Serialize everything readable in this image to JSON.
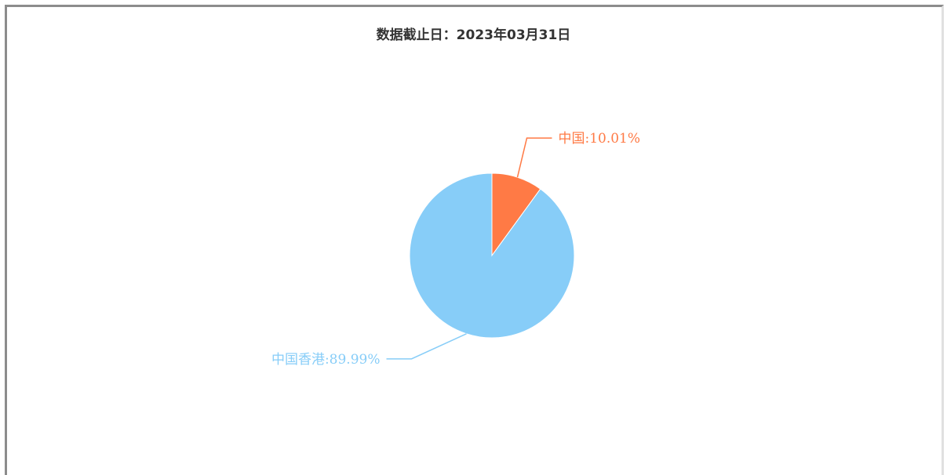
{
  "chart_data": {
    "type": "pie",
    "title": "数据截止日：2023年03月31日",
    "slices": [
      {
        "label": "中国",
        "value": 10.01,
        "display": "中国:10.01%",
        "color": "#ff7a45"
      },
      {
        "label": "中国香港",
        "value": 89.99,
        "display": "中国香港:89.99%",
        "color": "#87cdf8"
      }
    ],
    "legend": "none"
  }
}
